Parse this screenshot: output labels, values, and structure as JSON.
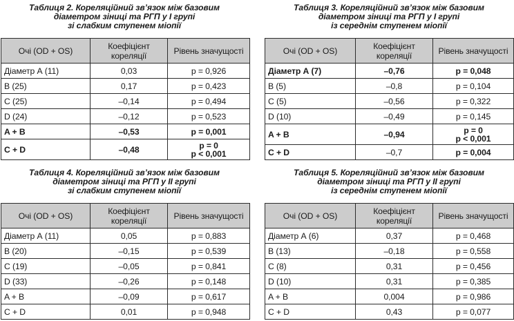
{
  "tables": [
    {
      "caption": [
        "Таблиця 2. Кореляційний зв’язок між базовим",
        "діаметром зіниці та РГП у І групі",
        "зі слабким ступенем міопії"
      ],
      "headers": [
        "Очі (OD + OS)",
        "Коефіцієнт кореляції",
        "Рівень значущості"
      ],
      "rows": [
        {
          "label": "Діаметр А (11)",
          "coef": "0,03",
          "sig": "p = 0,926",
          "bold": false
        },
        {
          "label": "B (25)",
          "coef": "0,17",
          "sig": "p = 0,423",
          "bold": false
        },
        {
          "label": "C (25)",
          "coef": "–0,14",
          "sig": "p = 0,494",
          "bold": false
        },
        {
          "label": "D (24)",
          "coef": "–0,12",
          "sig": "p = 0,523",
          "bold": false
        },
        {
          "label": "A + B",
          "coef": "–0,53",
          "sig": "p = 0,001",
          "bold": true
        },
        {
          "label": "C + D",
          "coef": "–0,48",
          "sig": "p = 0\np < 0,001",
          "bold": true
        }
      ]
    },
    {
      "caption": [
        "Таблиця 3. Кореляційний зв’язок між базовим",
        "діаметром зіниці та РГП у І групі",
        "із середнім ступенем міопії"
      ],
      "headers": [
        "Очі (OD + OS)",
        "Коефіцієнт кореляції",
        "Рівень значущості"
      ],
      "rows": [
        {
          "label": "Діаметр А (7)",
          "coef": "–0,76",
          "sig": "p = 0,048",
          "bold": true
        },
        {
          "label": "B (5)",
          "coef": "–0,8",
          "sig": "p = 0,104",
          "bold": false
        },
        {
          "label": "C (5)",
          "coef": "–0,56",
          "sig": "p = 0,322",
          "bold": false
        },
        {
          "label": "D (10)",
          "coef": "–0,49",
          "sig": "p = 0,145",
          "bold": false
        },
        {
          "label": "A + B",
          "coef": "–0,94",
          "sig": "p = 0\np < 0,001",
          "bold": true
        },
        {
          "label": "C + D",
          "coef": "–0,7",
          "sig": "p = 0,004",
          "bold": false,
          "bold_sig": true
        }
      ]
    },
    {
      "caption": [
        "Таблиця 4. Кореляційний зв’язок між базовим",
        "діаметром зіниці та РГП у ІІ групі",
        "зі слабким ступенем міопії"
      ],
      "headers": [
        "Очі (OD + OS)",
        "Коефіцієнт кореляції",
        "Рівень значущості"
      ],
      "rows": [
        {
          "label": "Діаметр А (11)",
          "coef": "0,05",
          "sig": "p = 0,883",
          "bold": false
        },
        {
          "label": "B (20)",
          "coef": "–0,15",
          "sig": "p = 0,539",
          "bold": false
        },
        {
          "label": "C (19)",
          "coef": "–0,05",
          "sig": "p = 0,841",
          "bold": false
        },
        {
          "label": "D (33)",
          "coef": "–0,26",
          "sig": "p = 0,148",
          "bold": false
        },
        {
          "label": "A + B",
          "coef": "–0,09",
          "sig": "p = 0,617",
          "bold": false
        },
        {
          "label": "C + D",
          "coef": "0,01",
          "sig": "p = 0,948",
          "bold": false
        }
      ]
    },
    {
      "caption": [
        "Таблиця 5. Кореляційний зв’язок між базовим",
        "діаметром зіниці та РГП у ІІ групі",
        "із середнім ступенем міопії"
      ],
      "headers": [
        "Очі (OD + OS)",
        "Коефіцієнт кореляції",
        "Рівень значущості"
      ],
      "rows": [
        {
          "label": "Діаметр А (6)",
          "coef": "0,37",
          "sig": "p = 0,468",
          "bold": false
        },
        {
          "label": "B (13)",
          "coef": "–0,18",
          "sig": "p = 0,558",
          "bold": false
        },
        {
          "label": "C (8)",
          "coef": "0,31",
          "sig": "p = 0,456",
          "bold": false
        },
        {
          "label": "D (10)",
          "coef": "0,31",
          "sig": "p = 0,385",
          "bold": false
        },
        {
          "label": "A + B",
          "coef": "0,004",
          "sig": "p = 0,986",
          "bold": false
        },
        {
          "label": "C + D",
          "coef": "0,43",
          "sig": "p = 0,077",
          "bold": false
        }
      ]
    }
  ]
}
